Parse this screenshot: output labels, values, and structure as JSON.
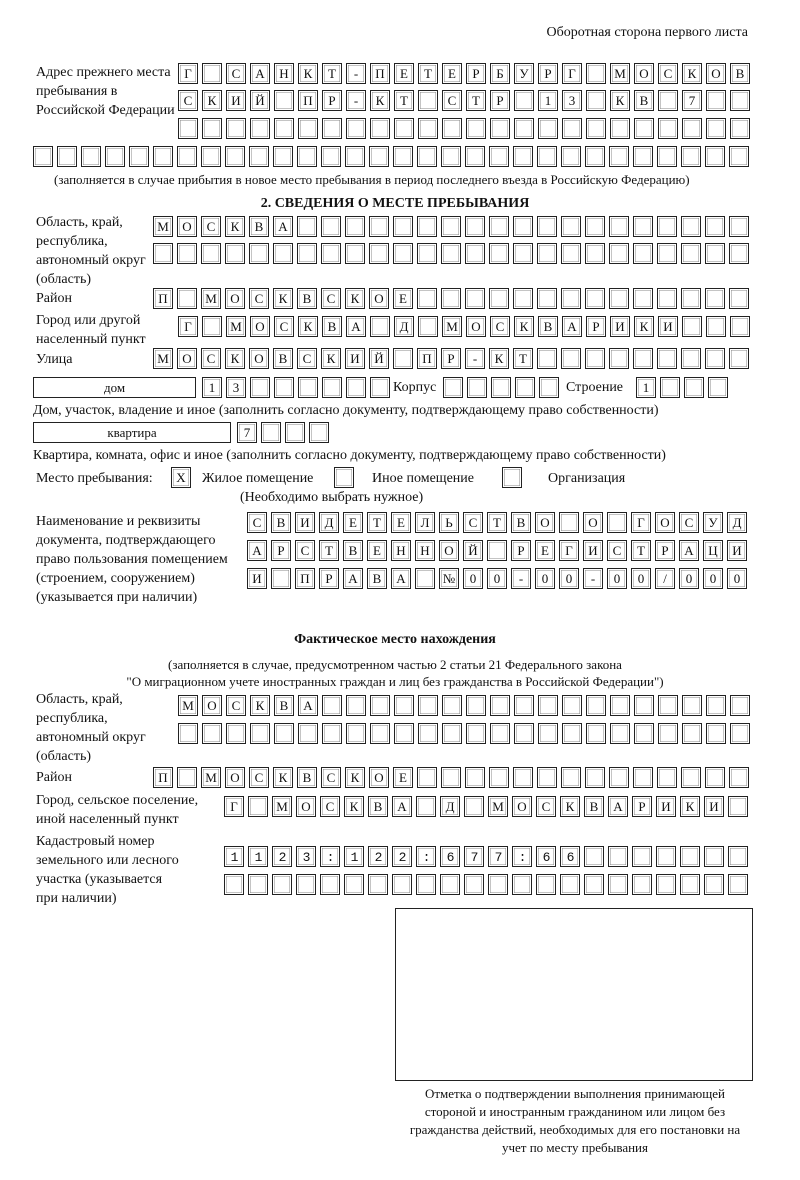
{
  "header": {
    "page_side": "Оборотная сторона первого листа"
  },
  "previous_address": {
    "label": "Адрес прежнего места пребывания в Российской Федерации",
    "rows": [
      "Г САНКТ-ПЕТЕРБУРГ МОСКОВ",
      "СКИЙ ПР-КТ СТР 13 КВ 7",
      "",
      ""
    ],
    "note": "(заполняется в случае прибытия в новое место пребывания в период последнего въезда в Российскую Федерацию)"
  },
  "section2": {
    "title": "2. СВЕДЕНИЯ О МЕСТЕ ПРЕБЫВАНИЯ",
    "region_label": "Область, край, республика, автономный округ (область)",
    "region_rows": [
      "МОСКВА",
      ""
    ],
    "district_label": "Район",
    "district": "П МОСКВСКОЕ",
    "city_label": "Город или другой населенный пункт",
    "city": "Г МОСКВА Д МОСКВАРИКИ",
    "street_label": "Улица",
    "street": "МОСКОВСКИЙ ПР-КТ",
    "house_type": "дом",
    "house_number": "13",
    "building_label": "Корпус",
    "building": "",
    "structure_label": "Строение",
    "structure": "1",
    "house_note": "Дом, участок, владение и иное (заполнить согласно документу, подтверждающему право собственности)",
    "apartment_type": "квартира",
    "apartment_number": "7",
    "apartment_note": "Квартира, комната, офис и иное (заполнить согласно документу, подтверждающему право собственности)",
    "stay_place_label": "Место пребывания:",
    "stay_options": [
      {
        "label": "Жилое помещение",
        "mark": "X"
      },
      {
        "label": "Иное помещение",
        "mark": ""
      },
      {
        "label": "Организация",
        "mark": ""
      }
    ],
    "stay_note": "(Необходимо выбрать нужное)",
    "document_label": "Наименование и реквизиты документа, подтверждающего право пользования помещением (строением, сооружением) (указывается при наличии)",
    "document_rows": [
      "СВИДЕТЕЛЬСТВО О ГОСУД",
      "АРСТВЕННОЙ РЕГИСТРАЦИ",
      "И ПРАВА №00-00-00/000"
    ]
  },
  "actual_location": {
    "title": "Фактическое место нахождения",
    "note_line1": "(заполняется в случае, предусмотренном частью 2 статьи 21 Федерального закона",
    "note_line2": "\"О миграционном учете иностранных граждан и лиц без гражданства в Российской Федерации\")",
    "region_label": "Область, край, республика, автономный округ (область)",
    "region_rows": [
      "МОСКВА",
      ""
    ],
    "district_label": "Район",
    "district": "П МОСКВСКОЕ",
    "city_label": "Город, сельское поселение, иной населенный пункт",
    "city": "Г МОСКВА Д МОСКВАРИКИ",
    "cadastral_label": "Кадастровый номер земельного или лесного участка (указывается при наличии)",
    "cadastral_rows": [
      "1123:122:677:66",
      ""
    ]
  },
  "confirmation": {
    "caption": "Отметка о подтверждении выполнения принимающей стороной и иностранным гражданином или лицом без гражданства действий, необходимых для его постановки на учет по месту пребывания"
  }
}
